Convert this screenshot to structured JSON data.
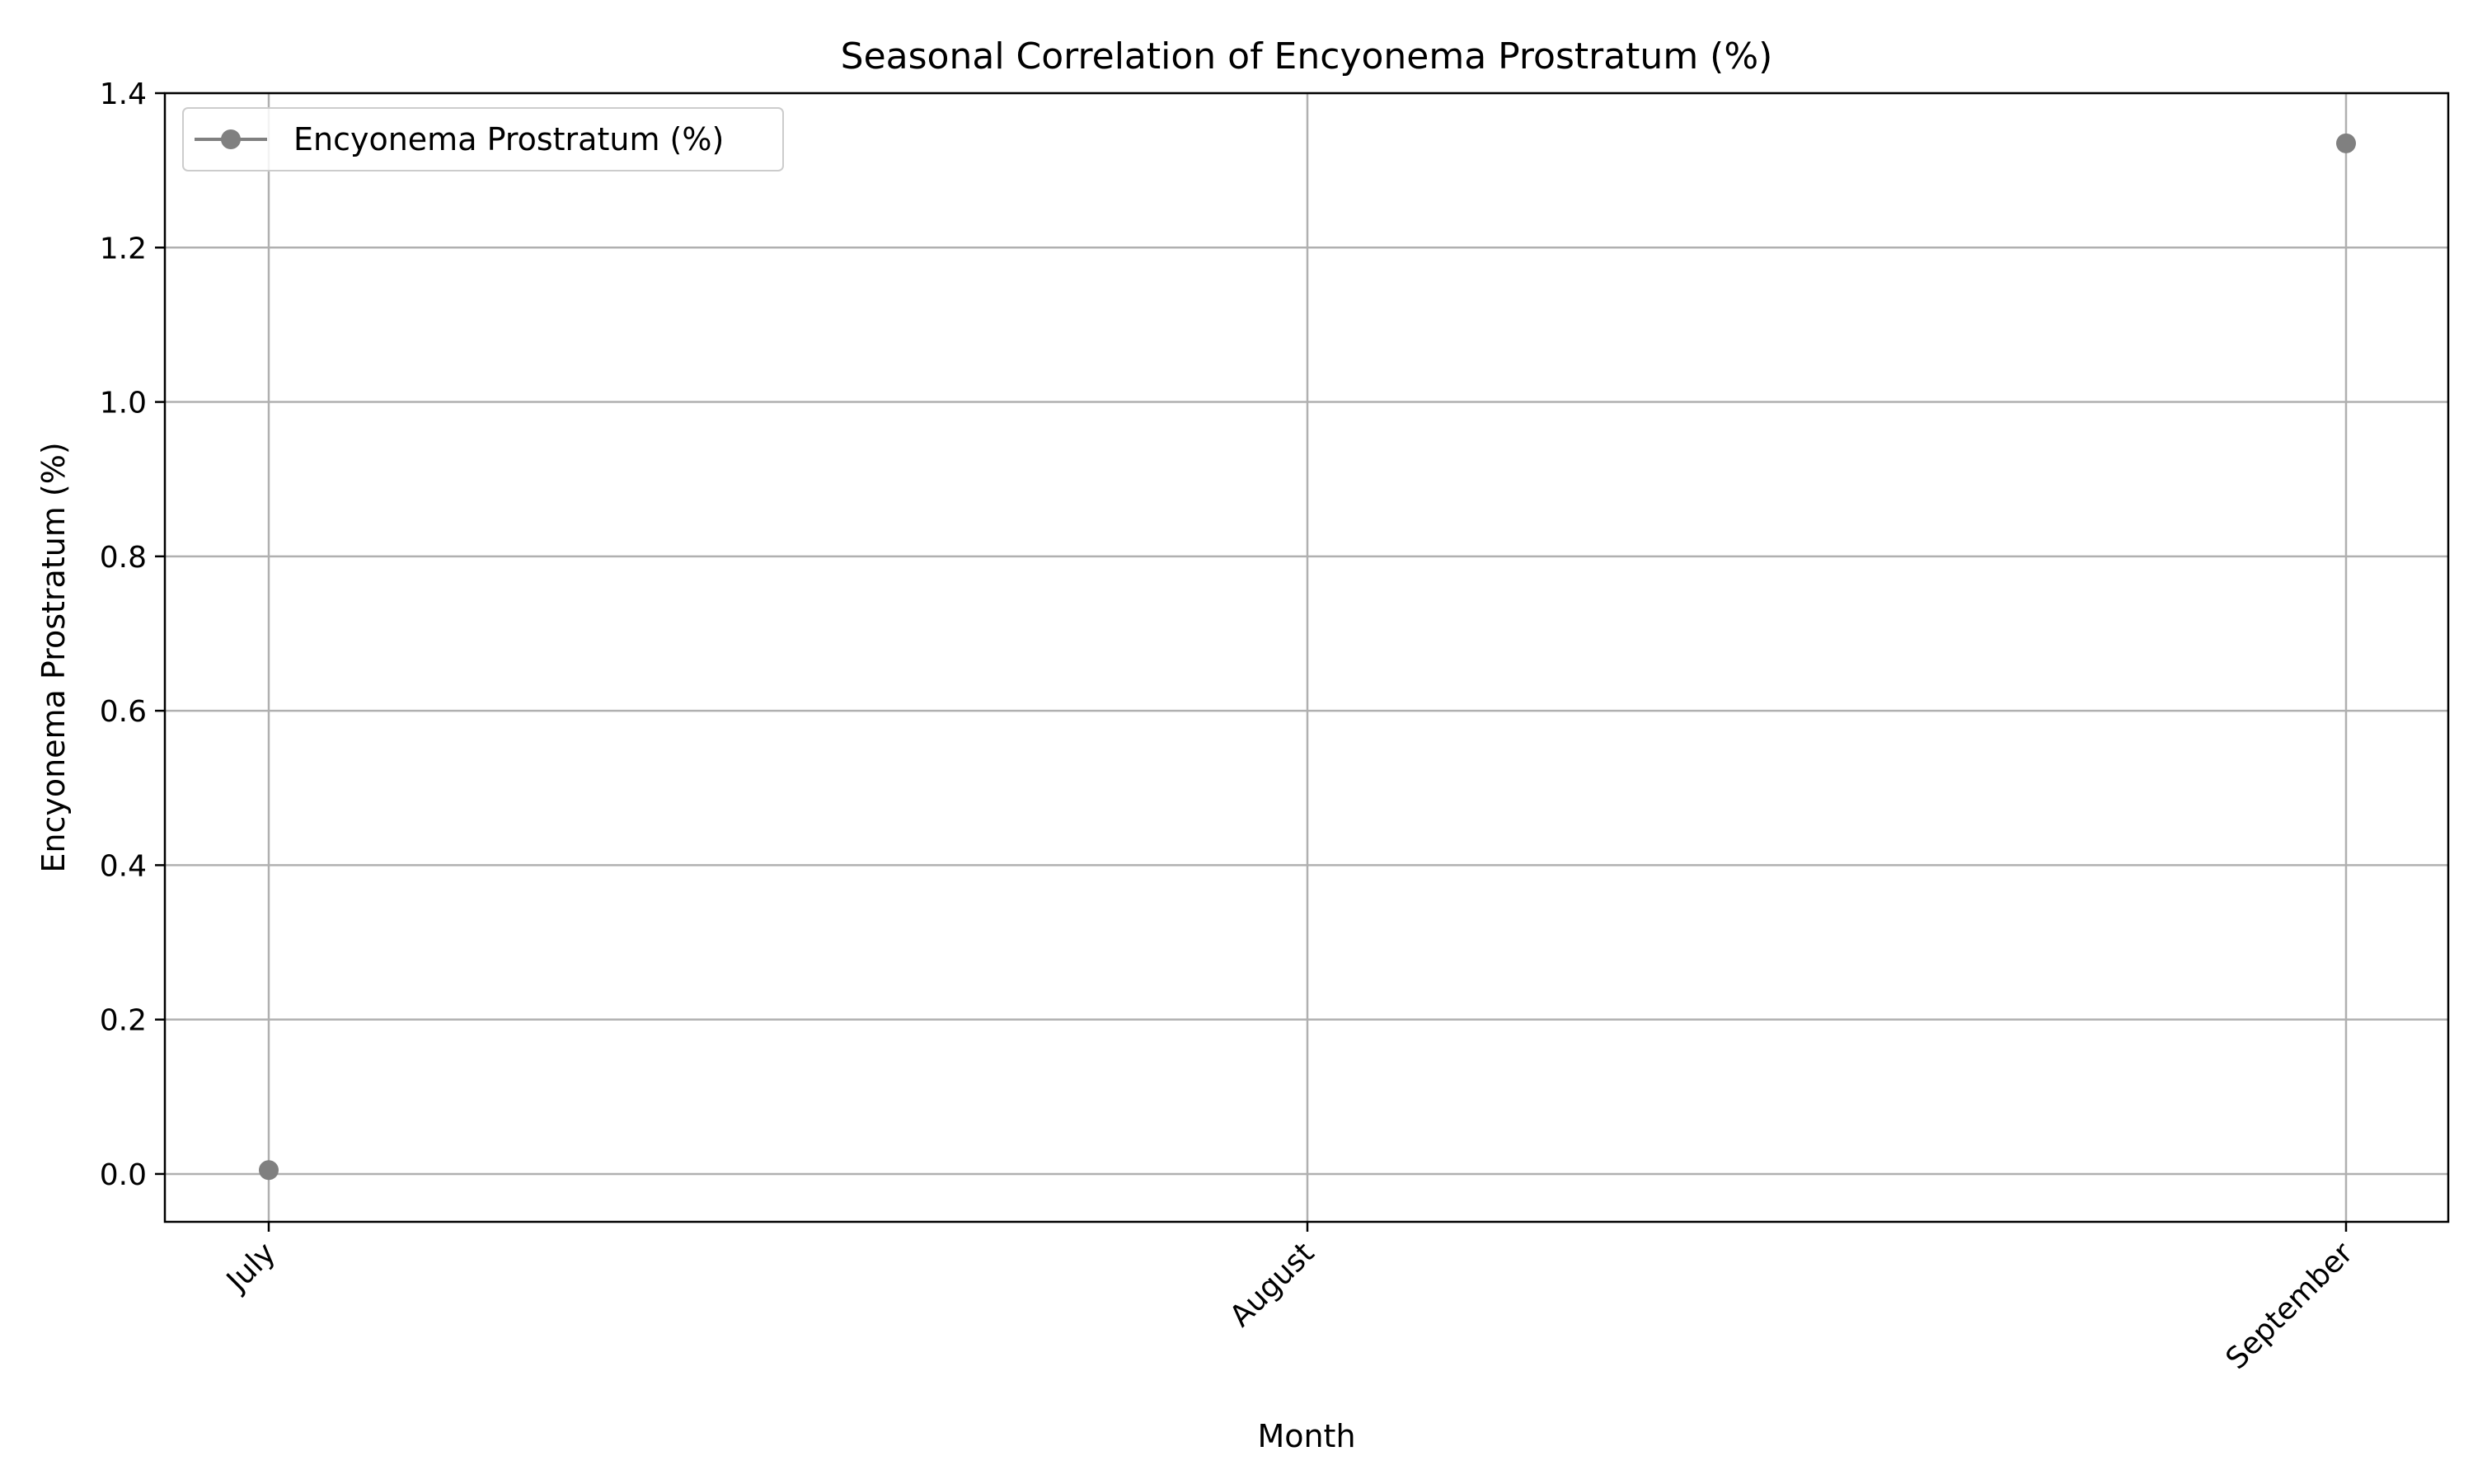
{
  "chart_data": {
    "type": "line",
    "title": "Seasonal Correlation of Encyonema Prostratum (%)",
    "xlabel": "Month",
    "ylabel": "Encyonema Prostratum (%)",
    "categories": [
      "July",
      "August",
      "September"
    ],
    "series": [
      {
        "name": "Encyonema Prostratum (%)",
        "values": [
          0.005,
          null,
          1.335
        ],
        "color": "#808080",
        "marker": "circle"
      }
    ],
    "ylim": [
      -0.062,
      1.4
    ],
    "yticks": [
      0.0,
      0.2,
      0.4,
      0.6,
      0.8,
      1.0,
      1.2,
      1.4
    ],
    "ytick_labels": [
      "0.0",
      "0.2",
      "0.4",
      "0.6",
      "0.8",
      "1.0",
      "1.2",
      "1.4"
    ],
    "xtick_rotation": 45,
    "grid": true,
    "grid_color": "#b0b0b0",
    "legend_position": "upper left"
  }
}
